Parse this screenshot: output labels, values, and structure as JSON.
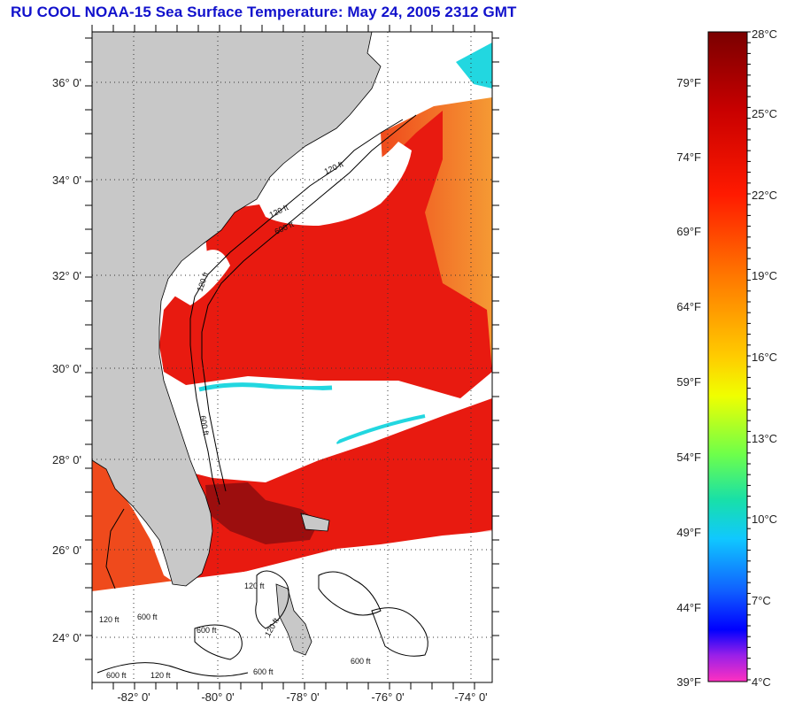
{
  "title": "RU COOL  NOAA-15  Sea Surface Temperature:  May 24, 2005 2312 GMT",
  "map": {
    "lat_ticks": [
      "36° 0'",
      "34° 0'",
      "32° 0'",
      "30° 0'",
      "28° 0'",
      "26° 0'",
      "24° 0'"
    ],
    "lon_ticks": [
      "-82° 0'",
      "-80° 0'",
      "-78° 0'",
      "-76° 0'",
      "-74° 0'"
    ],
    "contour_labels": [
      "120 ft",
      "600 ft"
    ],
    "colors": {
      "land": "#c8c8c8",
      "cloud": "#ffffff",
      "gulf_stream": "#e81a10",
      "warm_shelf": "#ef4a1c",
      "offshore": "#f28a2a",
      "hot": "#9c0e0e",
      "cool_front": "#22d7e0"
    }
  },
  "colorbar": {
    "fahrenheit": [
      "79°F",
      "74°F",
      "69°F",
      "64°F",
      "59°F",
      "54°F",
      "49°F",
      "44°F",
      "39°F"
    ],
    "celsius": [
      "28°C",
      "25°C",
      "22°C",
      "19°C",
      "16°C",
      "13°C",
      "10°C",
      "7°C",
      "4°C"
    ]
  }
}
